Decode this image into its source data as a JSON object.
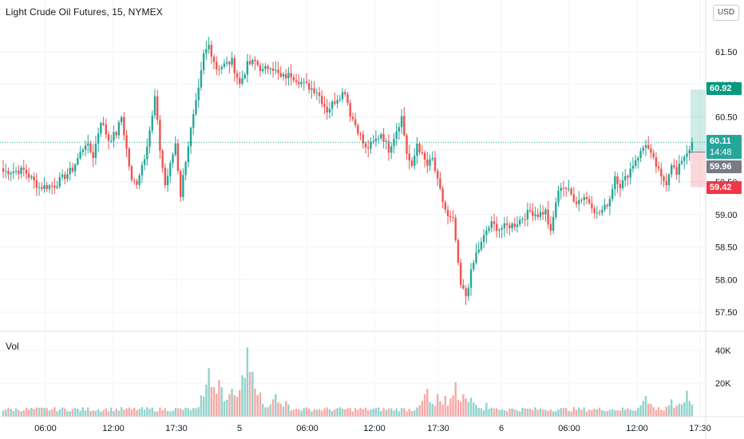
{
  "header": {
    "title": "Light Crude Oil Futures, 15, NYMEX",
    "currency_button": "USD"
  },
  "volume_pane": {
    "label": "Vol"
  },
  "price_labels": {
    "target": "60.92",
    "last_price": "60.11",
    "countdown": "14:48",
    "entry": "59.96",
    "stop": "59.42"
  },
  "colors": {
    "up": "#26a69a",
    "down": "#ef5350",
    "target_tag": "#089981",
    "stop_tag": "#f23645",
    "entry_tag": "#787b86"
  },
  "chart_data": {
    "type": "candlestick",
    "symbol": "Light Crude Oil Futures, 15, NYMEX",
    "y_ticks": [
      61.5,
      61.0,
      60.5,
      60.0,
      59.5,
      59.0,
      58.5,
      58.0,
      57.5
    ],
    "y_tick_labels": [
      "61.50",
      "61.00",
      "60.50",
      "60.00",
      "59.50",
      "59.00",
      "58.50",
      "58.00",
      "57.50"
    ],
    "ylim": [
      57.25,
      61.95
    ],
    "x_tick_labels": [
      "06:00",
      "12:00",
      "17:30",
      "5",
      "06:00",
      "12:00",
      "17:30",
      "6",
      "06:00",
      "12:00",
      "17:30"
    ],
    "close_path": [
      {
        "t": 0,
        "v": 59.66
      },
      {
        "t": 8,
        "v": 59.68
      },
      {
        "t": 14,
        "v": 59.42
      },
      {
        "t": 20,
        "v": 59.45
      },
      {
        "t": 27,
        "v": 59.7
      },
      {
        "t": 32,
        "v": 60.1
      },
      {
        "t": 35,
        "v": 59.9
      },
      {
        "t": 38,
        "v": 60.45
      },
      {
        "t": 41,
        "v": 60.15
      },
      {
        "t": 44,
        "v": 60.25
      },
      {
        "t": 46,
        "v": 60.5
      },
      {
        "t": 48,
        "v": 60.0
      },
      {
        "t": 50,
        "v": 59.5
      },
      {
        "t": 52,
        "v": 59.5
      },
      {
        "t": 55,
        "v": 59.9
      },
      {
        "t": 58,
        "v": 60.5
      },
      {
        "t": 59,
        "v": 60.8
      },
      {
        "t": 61,
        "v": 60.0
      },
      {
        "t": 63,
        "v": 59.45
      },
      {
        "t": 65,
        "v": 59.75
      },
      {
        "t": 67,
        "v": 60.1
      },
      {
        "t": 69,
        "v": 59.3
      },
      {
        "t": 71,
        "v": 59.85
      },
      {
        "t": 73,
        "v": 60.3
      },
      {
        "t": 76,
        "v": 60.9
      },
      {
        "t": 78,
        "v": 61.45
      },
      {
        "t": 80,
        "v": 61.6
      },
      {
        "t": 83,
        "v": 61.25
      },
      {
        "t": 86,
        "v": 61.3
      },
      {
        "t": 89,
        "v": 61.35
      },
      {
        "t": 92,
        "v": 61.0
      },
      {
        "t": 95,
        "v": 61.3
      },
      {
        "t": 98,
        "v": 61.35
      },
      {
        "t": 101,
        "v": 61.2
      },
      {
        "t": 104,
        "v": 61.3
      },
      {
        "t": 108,
        "v": 61.1
      },
      {
        "t": 112,
        "v": 61.15
      },
      {
        "t": 117,
        "v": 61.0
      },
      {
        "t": 122,
        "v": 60.9
      },
      {
        "t": 126,
        "v": 60.6
      },
      {
        "t": 130,
        "v": 60.8
      },
      {
        "t": 133,
        "v": 60.9
      },
      {
        "t": 135,
        "v": 60.55
      },
      {
        "t": 138,
        "v": 60.3
      },
      {
        "t": 141,
        "v": 60.0
      },
      {
        "t": 144,
        "v": 60.1
      },
      {
        "t": 147,
        "v": 60.25
      },
      {
        "t": 150,
        "v": 60.0
      },
      {
        "t": 152,
        "v": 60.2
      },
      {
        "t": 155,
        "v": 60.5
      },
      {
        "t": 157,
        "v": 59.95
      },
      {
        "t": 159,
        "v": 59.7
      },
      {
        "t": 161,
        "v": 60.1
      },
      {
        "t": 163,
        "v": 59.9
      },
      {
        "t": 165,
        "v": 59.75
      },
      {
        "t": 167,
        "v": 59.85
      },
      {
        "t": 169,
        "v": 59.5
      },
      {
        "t": 171,
        "v": 59.2
      },
      {
        "t": 173,
        "v": 58.95
      },
      {
        "t": 175,
        "v": 58.9
      },
      {
        "t": 176,
        "v": 58.6
      },
      {
        "t": 177,
        "v": 58.2
      },
      {
        "t": 178,
        "v": 57.9
      },
      {
        "t": 180,
        "v": 57.75
      },
      {
        "t": 182,
        "v": 58.1
      },
      {
        "t": 184,
        "v": 58.4
      },
      {
        "t": 186,
        "v": 58.55
      },
      {
        "t": 188,
        "v": 58.75
      },
      {
        "t": 190,
        "v": 58.85
      },
      {
        "t": 193,
        "v": 58.78
      },
      {
        "t": 196,
        "v": 58.82
      },
      {
        "t": 199,
        "v": 58.85
      },
      {
        "t": 202,
        "v": 58.95
      },
      {
        "t": 205,
        "v": 59.05
      },
      {
        "t": 208,
        "v": 59.0
      },
      {
        "t": 211,
        "v": 59.05
      },
      {
        "t": 213,
        "v": 58.7
      },
      {
        "t": 215,
        "v": 59.2
      },
      {
        "t": 217,
        "v": 59.45
      },
      {
        "t": 219,
        "v": 59.4
      },
      {
        "t": 221,
        "v": 59.3
      },
      {
        "t": 223,
        "v": 59.2
      },
      {
        "t": 226,
        "v": 59.28
      },
      {
        "t": 229,
        "v": 59.15
      },
      {
        "t": 231,
        "v": 59.0
      },
      {
        "t": 234,
        "v": 59.1
      },
      {
        "t": 236,
        "v": 59.25
      },
      {
        "t": 238,
        "v": 59.6
      },
      {
        "t": 240,
        "v": 59.45
      },
      {
        "t": 242,
        "v": 59.55
      },
      {
        "t": 244,
        "v": 59.7
      },
      {
        "t": 246,
        "v": 59.85
      },
      {
        "t": 248,
        "v": 59.95
      },
      {
        "t": 250,
        "v": 60.1
      },
      {
        "t": 252,
        "v": 59.9
      },
      {
        "t": 254,
        "v": 59.75
      },
      {
        "t": 256,
        "v": 59.55
      },
      {
        "t": 258,
        "v": 59.5
      },
      {
        "t": 260,
        "v": 59.8
      },
      {
        "t": 262,
        "v": 59.6
      },
      {
        "t": 264,
        "v": 59.85
      },
      {
        "t": 266,
        "v": 59.96
      },
      {
        "t": 268,
        "v": 60.11
      }
    ],
    "volume": {
      "y_tick_labels": [
        "40K",
        "20K"
      ],
      "ylim": [
        0,
        48000
      ],
      "peaks": [
        {
          "t": 80,
          "v": 28000
        },
        {
          "t": 84,
          "v": 21000
        },
        {
          "t": 89,
          "v": 16000
        },
        {
          "t": 93,
          "v": 22000
        },
        {
          "t": 95,
          "v": 40000
        },
        {
          "t": 97,
          "v": 26000
        },
        {
          "t": 100,
          "v": 14000
        },
        {
          "t": 106,
          "v": 13000
        },
        {
          "t": 110,
          "v": 9000
        },
        {
          "t": 165,
          "v": 16000
        },
        {
          "t": 169,
          "v": 13000
        },
        {
          "t": 172,
          "v": 12000
        },
        {
          "t": 176,
          "v": 20000
        },
        {
          "t": 179,
          "v": 13000
        },
        {
          "t": 182,
          "v": 11000
        },
        {
          "t": 188,
          "v": 8000
        },
        {
          "t": 250,
          "v": 12000
        },
        {
          "t": 260,
          "v": 10000
        },
        {
          "t": 266,
          "v": 15000
        }
      ],
      "baseline": 3000
    },
    "trade_levels": {
      "target": 60.92,
      "last": 60.11,
      "entry": 59.96,
      "stop": 59.42
    }
  }
}
